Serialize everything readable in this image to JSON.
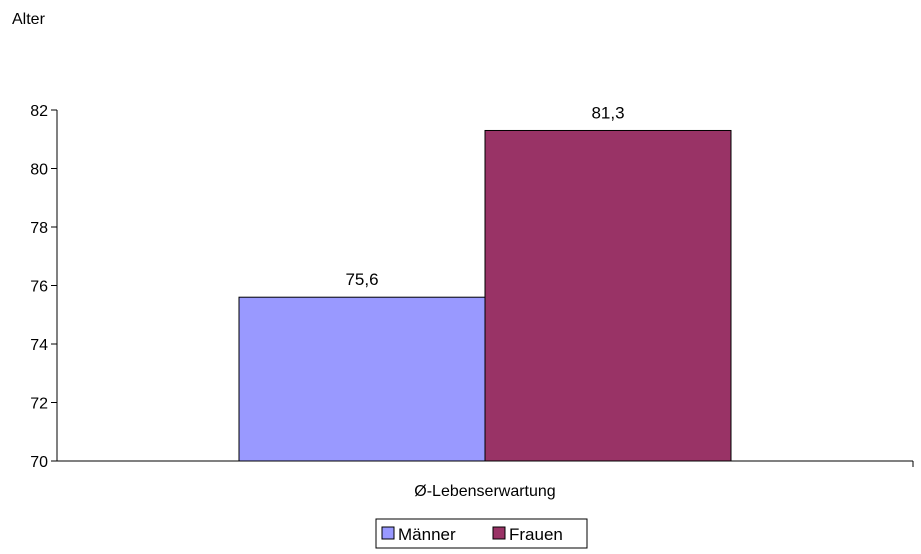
{
  "chart_data": {
    "type": "bar",
    "ylabel": "Alter",
    "xlabel": "",
    "categories": [
      "Ø-Lebenserwartung"
    ],
    "series": [
      {
        "name": "Männer",
        "values": [
          75.6
        ],
        "label": "75,6",
        "color": "#9999ff"
      },
      {
        "name": "Frauen",
        "values": [
          81.3
        ],
        "label": "81,3",
        "color": "#993366"
      }
    ],
    "ylim": [
      70,
      82
    ],
    "yticks": [
      {
        "value": 70,
        "label": "70"
      },
      {
        "value": 72,
        "label": "72"
      },
      {
        "value": 74,
        "label": "74"
      },
      {
        "value": 76,
        "label": "76"
      },
      {
        "value": 78,
        "label": "78"
      },
      {
        "value": 80,
        "label": "80"
      },
      {
        "value": 82,
        "label": "82"
      }
    ],
    "grid": false,
    "legend_position": "bottom"
  }
}
